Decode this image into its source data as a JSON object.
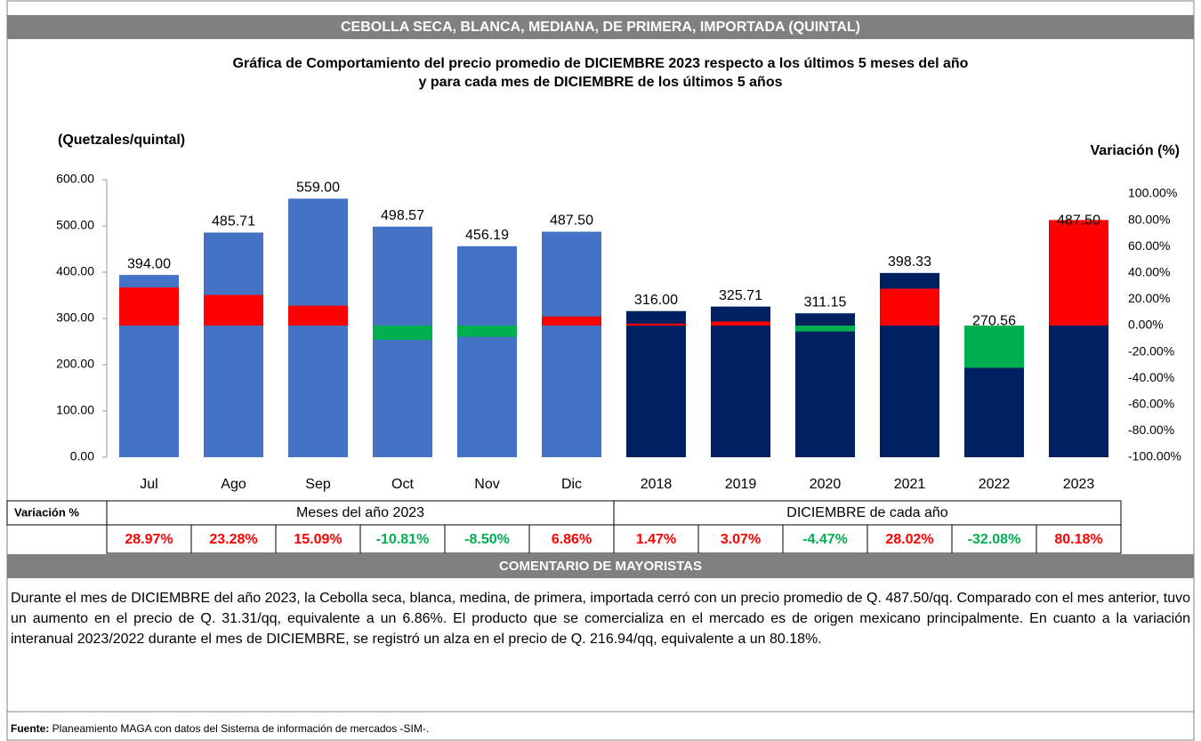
{
  "header": {
    "title": "CEBOLLA SECA, BLANCA, MEDIANA, DE PRIMERA, IMPORTADA (QUINTAL)"
  },
  "chart_data": {
    "type": "bar",
    "title": [
      "Gráfica de Comportamiento del precio promedio de DICIEMBRE 2023 respecto a los últimos 5 meses del año",
      "y para cada mes de DICIEMBRE de los últimos 5 años"
    ],
    "y_label": "(Quetzales/quintal)",
    "y2_label": "Variación (%)",
    "ylim": [
      0,
      600
    ],
    "yticks": [
      {
        "value": 0,
        "label": "0.00"
      },
      {
        "value": 100,
        "label": "100.00"
      },
      {
        "value": 200,
        "label": "200.00"
      },
      {
        "value": 300,
        "label": "300.00"
      },
      {
        "value": 400,
        "label": "400.00"
      },
      {
        "value": 500,
        "label": "500.00"
      },
      {
        "value": 600,
        "label": "600.00"
      }
    ],
    "y2lim": [
      -100,
      110.8
    ],
    "y2ticks": [
      {
        "value": -100,
        "label": "-100.00%"
      },
      {
        "value": -80,
        "label": "-80.00%"
      },
      {
        "value": -60,
        "label": "-60.00%"
      },
      {
        "value": -40,
        "label": "-40.00%"
      },
      {
        "value": -20,
        "label": "-20.00%"
      },
      {
        "value": 0,
        "label": "0.00%"
      },
      {
        "value": 20,
        "label": "20.00%"
      },
      {
        "value": 40,
        "label": "40.00%"
      },
      {
        "value": 60,
        "label": "60.00%"
      },
      {
        "value": 80,
        "label": "80.00%"
      },
      {
        "value": 100,
        "label": "100.00%"
      }
    ],
    "positive_color": "#ff0000",
    "negative_color": "#00b050",
    "table_label": "Variación %",
    "groups": [
      {
        "name": "Meses del año 2023",
        "color": "#4472c4",
        "categories": [
          "Jul",
          "Ago",
          "Sep",
          "Oct",
          "Nov",
          "Dic"
        ],
        "values": [
          394,
          485.71,
          559,
          498.57,
          456.19,
          487.5
        ],
        "value_labels": [
          "394.00",
          "485.71",
          "559.00",
          "498.57",
          "456.19",
          "487.50"
        ],
        "variation": [
          28.97,
          23.28,
          15.09,
          -10.81,
          -8.5,
          6.86
        ],
        "variation_labels": [
          "28.97%",
          "23.28%",
          "15.09%",
          "-10.81%",
          "-8.50%",
          "6.86%"
        ]
      },
      {
        "name": "DICIEMBRE de cada año",
        "color": "#002060",
        "categories": [
          "2018",
          "2019",
          "2020",
          "2021",
          "2022",
          "2023"
        ],
        "values": [
          316,
          325.71,
          311.15,
          398.33,
          270.56,
          487.5
        ],
        "value_labels": [
          "316.00",
          "325.71",
          "311.15",
          "398.33",
          "270.56",
          "487.50"
        ],
        "variation": [
          1.47,
          3.07,
          -4.47,
          28.02,
          -32.08,
          80.18
        ],
        "variation_labels": [
          "1.47%",
          "3.07%",
          "-4.47%",
          "28.02%",
          "-32.08%",
          "80.18%"
        ]
      }
    ]
  },
  "comment": {
    "title": "COMENTARIO DE MAYORISTAS",
    "text": "Durante el mes de DICIEMBRE del año 2023, la Cebolla seca, blanca, medina, de primera, importada cerró con un precio promedio de Q. 487.50/qq. Comparado con el mes anterior, tuvo un aumento en el precio de Q. 31.31/qq, equivalente a un 6.86%. El producto que se comercializa en el mercado es de origen mexicano principalmente. En cuanto a la variación interanual 2023/2022 durante el mes de DICIEMBRE, se registró un alza en el precio de Q. 216.94/qq, equivalente a un  80.18%."
  },
  "source": {
    "label": "Fuente:",
    "text": " Planeamiento MAGA con datos del Sistema de información de mercados -SIM-."
  }
}
